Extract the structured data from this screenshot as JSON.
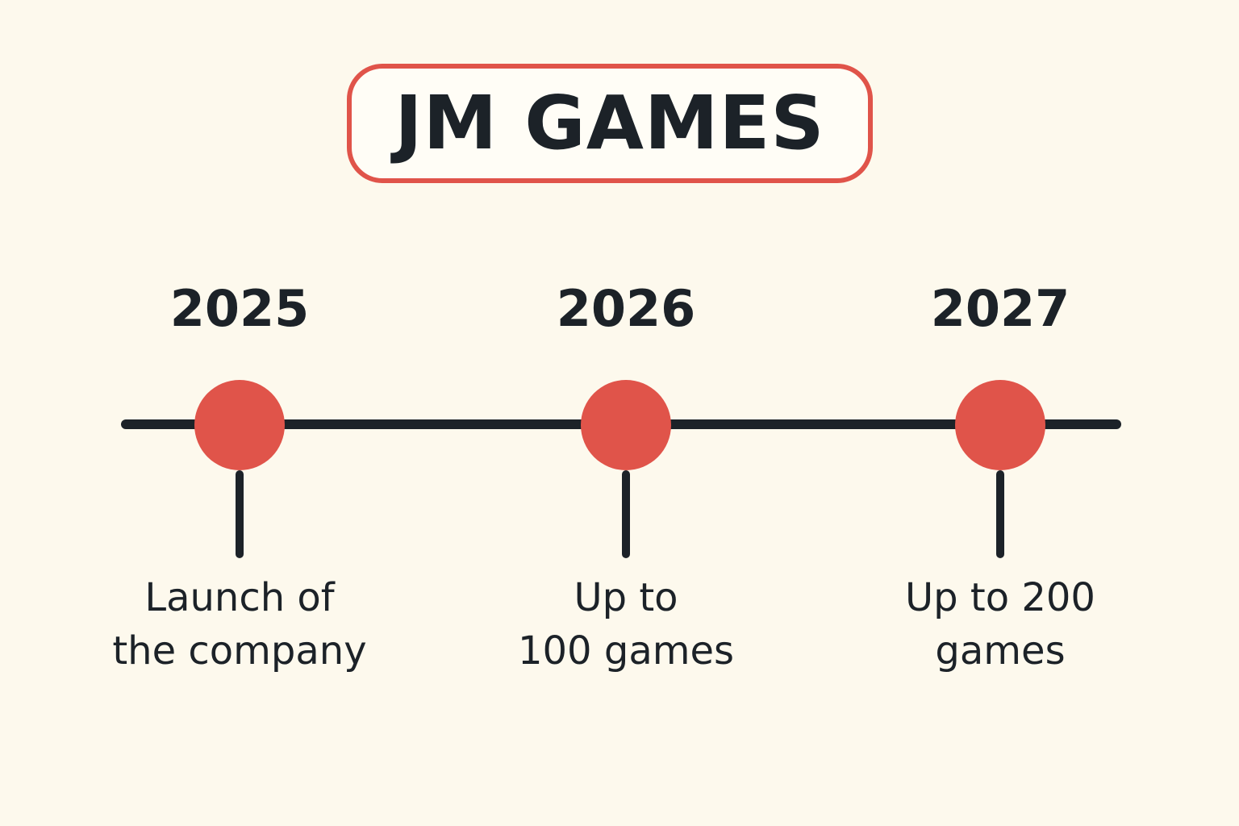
{
  "title": "JM GAMES",
  "accent_color": "#e0544a",
  "line_color": "#1c2228",
  "background_color": "#fdf9ed",
  "milestones": [
    {
      "year": "2025",
      "lines": [
        "Launch of",
        "the company"
      ]
    },
    {
      "year": "2026",
      "lines": [
        "Up to",
        "100 games"
      ]
    },
    {
      "year": "2027",
      "lines": [
        "Up to 200",
        "games"
      ]
    }
  ]
}
